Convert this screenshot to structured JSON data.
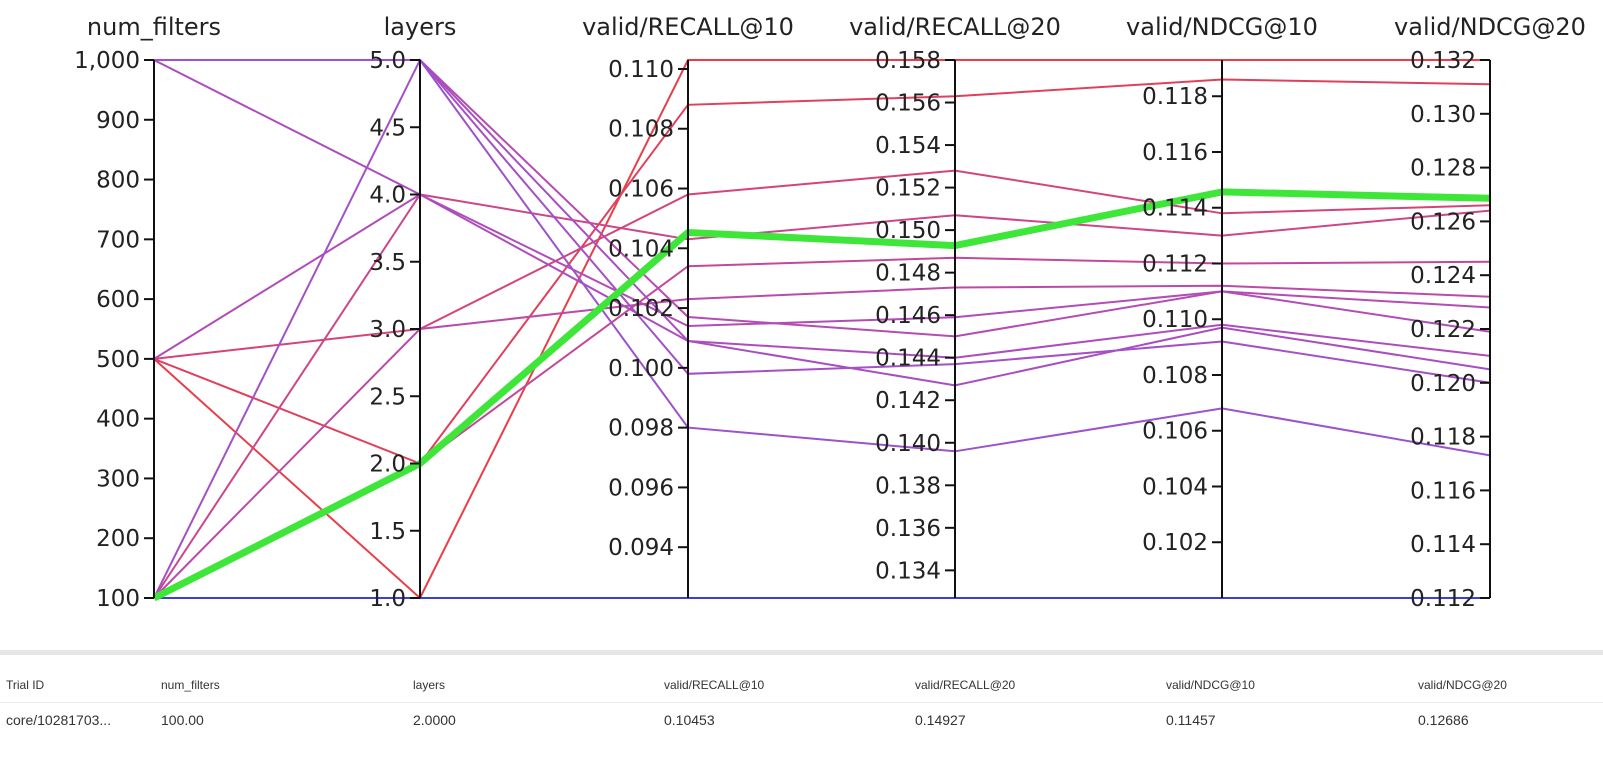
{
  "chart_data": {
    "type": "parallel_coordinates",
    "axes": [
      {
        "name": "num_filters",
        "min": 100,
        "max": 1000,
        "ticks": [
          {
            "v": 100,
            "label": "100"
          },
          {
            "v": 200,
            "label": "200"
          },
          {
            "v": 300,
            "label": "300"
          },
          {
            "v": 400,
            "label": "400"
          },
          {
            "v": 500,
            "label": "500"
          },
          {
            "v": 600,
            "label": "600"
          },
          {
            "v": 700,
            "label": "700"
          },
          {
            "v": 800,
            "label": "800"
          },
          {
            "v": 900,
            "label": "900"
          },
          {
            "v": 1000,
            "label": "1,000"
          }
        ]
      },
      {
        "name": "layers",
        "min": 1.0,
        "max": 5.0,
        "ticks": [
          {
            "v": 1.0,
            "label": "1.0"
          },
          {
            "v": 1.5,
            "label": "1.5"
          },
          {
            "v": 2.0,
            "label": "2.0"
          },
          {
            "v": 2.5,
            "label": "2.5"
          },
          {
            "v": 3.0,
            "label": "3.0"
          },
          {
            "v": 3.5,
            "label": "3.5"
          },
          {
            "v": 4.0,
            "label": "4.0"
          },
          {
            "v": 4.5,
            "label": "4.5"
          },
          {
            "v": 5.0,
            "label": "5.0"
          }
        ]
      },
      {
        "name": "valid/RECALL@10",
        "min": 0.0923,
        "max": 0.1103,
        "ticks": [
          {
            "v": 0.094,
            "label": "0.094"
          },
          {
            "v": 0.096,
            "label": "0.096"
          },
          {
            "v": 0.098,
            "label": "0.098"
          },
          {
            "v": 0.1,
            "label": "0.100"
          },
          {
            "v": 0.102,
            "label": "0.102"
          },
          {
            "v": 0.104,
            "label": "0.104"
          },
          {
            "v": 0.106,
            "label": "0.106"
          },
          {
            "v": 0.108,
            "label": "0.108"
          },
          {
            "v": 0.11,
            "label": "0.110"
          }
        ]
      },
      {
        "name": "valid/RECALL@20",
        "min": 0.1327,
        "max": 0.158,
        "ticks": [
          {
            "v": 0.134,
            "label": "0.134"
          },
          {
            "v": 0.136,
            "label": "0.136"
          },
          {
            "v": 0.138,
            "label": "0.138"
          },
          {
            "v": 0.14,
            "label": "0.140"
          },
          {
            "v": 0.142,
            "label": "0.142"
          },
          {
            "v": 0.144,
            "label": "0.144"
          },
          {
            "v": 0.146,
            "label": "0.146"
          },
          {
            "v": 0.148,
            "label": "0.148"
          },
          {
            "v": 0.15,
            "label": "0.150"
          },
          {
            "v": 0.152,
            "label": "0.152"
          },
          {
            "v": 0.154,
            "label": "0.154"
          },
          {
            "v": 0.156,
            "label": "0.156"
          },
          {
            "v": 0.158,
            "label": "0.158"
          }
        ]
      },
      {
        "name": "valid/NDCG@10",
        "min": 0.1,
        "max": 0.1193,
        "ticks": [
          {
            "v": 0.102,
            "label": "0.102"
          },
          {
            "v": 0.104,
            "label": "0.104"
          },
          {
            "v": 0.106,
            "label": "0.106"
          },
          {
            "v": 0.108,
            "label": "0.108"
          },
          {
            "v": 0.11,
            "label": "0.110"
          },
          {
            "v": 0.112,
            "label": "0.112"
          },
          {
            "v": 0.114,
            "label": "0.114"
          },
          {
            "v": 0.116,
            "label": "0.116"
          },
          {
            "v": 0.118,
            "label": "0.118"
          }
        ]
      },
      {
        "name": "valid/NDCG@20",
        "min": 0.112,
        "max": 0.132,
        "ticks": [
          {
            "v": 0.112,
            "label": "0.112"
          },
          {
            "v": 0.114,
            "label": "0.114"
          },
          {
            "v": 0.116,
            "label": "0.116"
          },
          {
            "v": 0.118,
            "label": "0.118"
          },
          {
            "v": 0.12,
            "label": "0.120"
          },
          {
            "v": 0.122,
            "label": "0.122"
          },
          {
            "v": 0.124,
            "label": "0.124"
          },
          {
            "v": 0.126,
            "label": "0.126"
          },
          {
            "v": 0.128,
            "label": "0.128"
          },
          {
            "v": 0.13,
            "label": "0.130"
          },
          {
            "v": 0.132,
            "label": "0.132"
          }
        ]
      }
    ],
    "lines": [
      {
        "color": "#e83e4a",
        "values": [
          500,
          1.0,
          0.1103,
          0.158,
          0.1193,
          0.132
        ]
      },
      {
        "color": "#e0405c",
        "values": [
          500,
          2.0,
          0.1088,
          0.1563,
          0.1186,
          0.1311
        ]
      },
      {
        "color": "#d4447a",
        "values": [
          500,
          3.0,
          0.1058,
          0.1528,
          0.1138,
          0.1266
        ]
      },
      {
        "color": "#cc4689",
        "values": [
          100,
          4.0,
          0.1043,
          0.1507,
          0.113,
          0.1264
        ]
      },
      {
        "color": "#c4489a",
        "values": [
          100,
          2.0,
          0.1034,
          0.1487,
          0.112,
          0.1245
        ]
      },
      {
        "color": "#bc4aa8",
        "values": [
          100,
          3.0,
          0.1023,
          0.1473,
          0.1112,
          0.1232
        ]
      },
      {
        "color": "#b54bb3",
        "values": [
          1000,
          5.0,
          0.1017,
          0.145,
          0.111,
          0.1228
        ]
      },
      {
        "color": "#b14cb8",
        "values": [
          500,
          4.0,
          0.1014,
          0.1459,
          0.111,
          0.1219
        ]
      },
      {
        "color": "#ad4dbd",
        "values": [
          1000,
          4.0,
          0.1009,
          0.144,
          0.1098,
          0.121
        ]
      },
      {
        "color": "#a84ec2",
        "values": [
          1000,
          5.0,
          0.1009,
          0.1427,
          0.1097,
          0.1205
        ]
      },
      {
        "color": "#a450c6",
        "values": [
          100,
          5.0,
          0.0998,
          0.1437,
          0.1092,
          0.12
        ]
      },
      {
        "color": "#9b52cc",
        "values": [
          1000,
          5.0,
          0.098,
          0.1396,
          0.1068,
          0.1173
        ]
      },
      {
        "color": "#3b3fd8",
        "values": [
          100,
          1.0,
          0.0923,
          0.1327,
          0.1,
          0.112
        ]
      }
    ],
    "highlight": {
      "color": "#3ee63a",
      "values": [
        100,
        2.0,
        0.10453,
        0.14927,
        0.11457,
        0.12686
      ]
    }
  },
  "table": {
    "headers": [
      "Trial ID",
      "num_filters",
      "layers",
      "valid/RECALL@10",
      "valid/RECALL@20",
      "valid/NDCG@10",
      "valid/NDCG@20"
    ],
    "rows": [
      [
        "core/10281703...",
        "100.00",
        "2.0000",
        "0.10453",
        "0.14927",
        "0.11457",
        "0.12686"
      ]
    ]
  }
}
